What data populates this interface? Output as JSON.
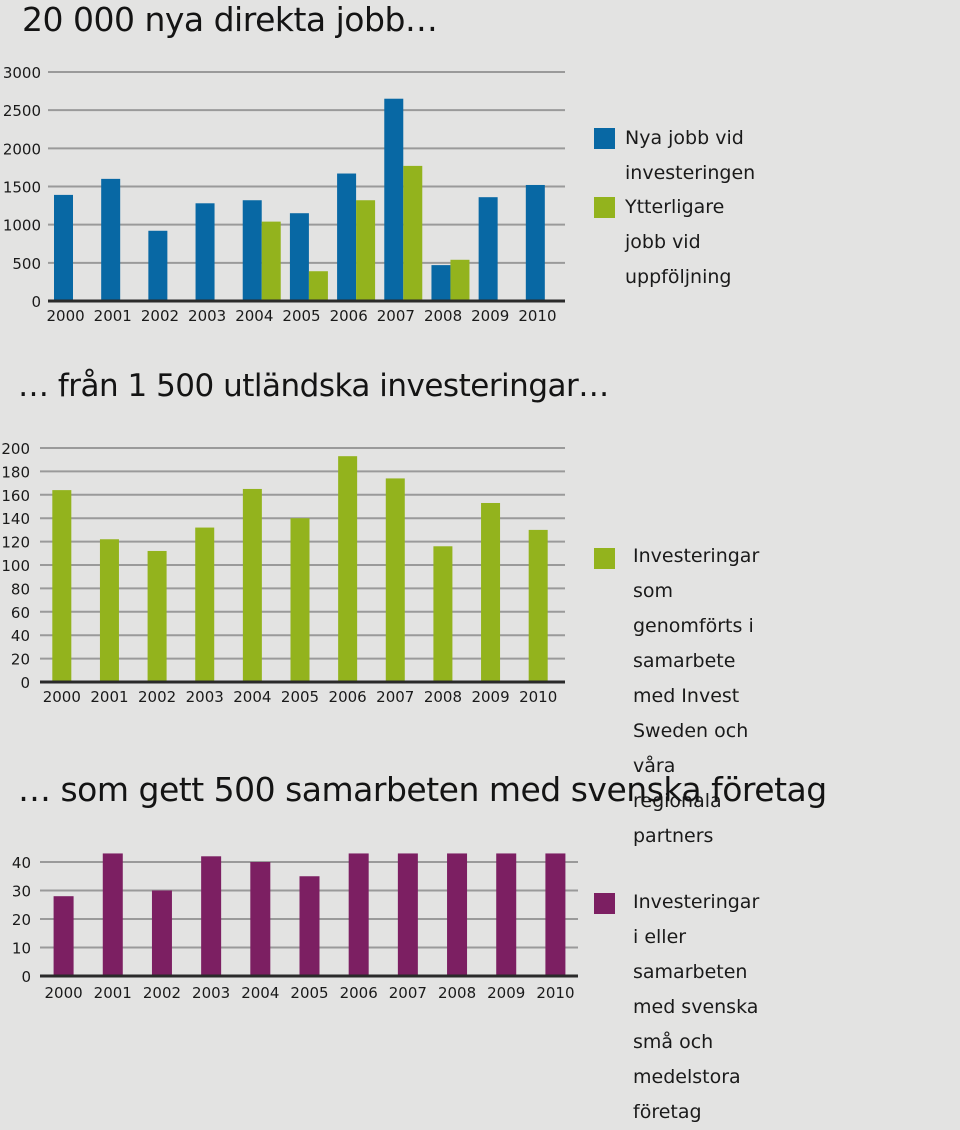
{
  "colors": {
    "blue": "#0868a4",
    "green": "#93b31d",
    "purple": "#7c1f62",
    "grid": "#9a9a9a",
    "axis": "#2a2a2a"
  },
  "chart_data": [
    {
      "type": "bar",
      "title": "20 000 nya direkta jobb…",
      "categories": [
        "2000",
        "2001",
        "2002",
        "2003",
        "2004",
        "2005",
        "2006",
        "2007",
        "2008",
        "2009",
        "2010"
      ],
      "yticks": [
        "0",
        "500",
        "1000",
        "1500",
        "2000",
        "2500",
        "3000"
      ],
      "ylim": [
        0,
        3000
      ],
      "grid": true,
      "legend_position": "right",
      "series": [
        {
          "name": "Nya jobb vid investeringen",
          "color": "#0868a4",
          "values": [
            1390,
            1600,
            920,
            1280,
            1320,
            1150,
            1670,
            2650,
            470,
            1360,
            1520
          ]
        },
        {
          "name": "Ytterligare jobb vid uppföljning",
          "color": "#93b31d",
          "values": [
            null,
            null,
            null,
            null,
            1040,
            390,
            1320,
            1770,
            540,
            null,
            null
          ]
        }
      ]
    },
    {
      "type": "bar",
      "title": "… från 1 500 utländska investeringar…",
      "categories": [
        "2000",
        "2001",
        "2002",
        "2003",
        "2004",
        "2005",
        "2006",
        "2007",
        "2008",
        "2009",
        "2010"
      ],
      "yticks": [
        "0",
        "20",
        "40",
        "60",
        "80",
        "100",
        "120",
        "140",
        "160",
        "180",
        "200"
      ],
      "ylim": [
        0,
        200
      ],
      "grid": true,
      "legend_position": "right",
      "series": [
        {
          "name": "Investeringar som genomförts i\nsamarbete med Invest Sweden och\nvåra regionala partners",
          "color": "#93b31d",
          "values": [
            164,
            122,
            112,
            132,
            165,
            140,
            193,
            174,
            116,
            153,
            130
          ]
        }
      ]
    },
    {
      "type": "bar",
      "title": "… som gett 500 samarbeten med svenska företag",
      "categories": [
        "2000",
        "2001",
        "2002",
        "2003",
        "2004",
        "2005",
        "2006",
        "2007",
        "2008",
        "2009",
        "2010"
      ],
      "yticks": [
        "0",
        "10",
        "20",
        "30",
        "40"
      ],
      "ylim": [
        0,
        40
      ],
      "grid": true,
      "legend_position": "right",
      "series": [
        {
          "name": "Investeringar i eller samarbeten\nmed svenska små och medelstora\nföretag",
          "color": "#7c1f62",
          "values": [
            28,
            43,
            30,
            42,
            40,
            35,
            43,
            43,
            43,
            43,
            43
          ]
        }
      ]
    }
  ]
}
